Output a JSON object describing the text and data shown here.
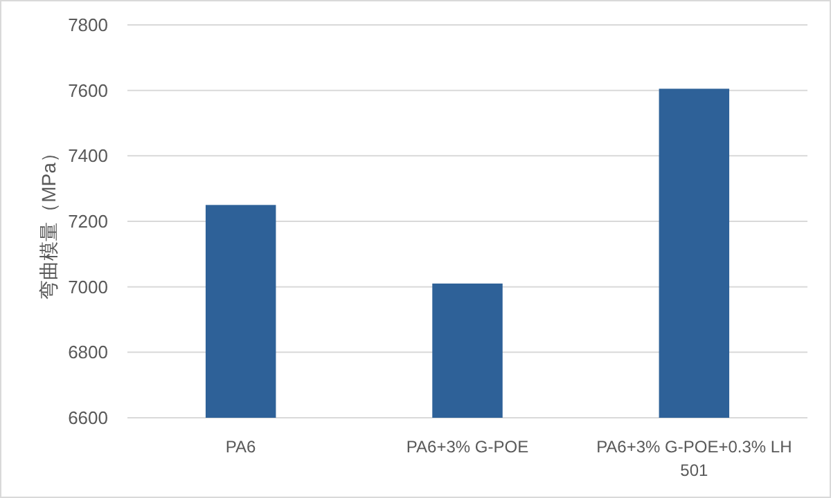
{
  "chart_data": {
    "type": "bar",
    "ylabel": "弯曲模量（MPa）",
    "categories": [
      "PA6",
      "PA6+3% G-POE",
      "PA6+3% G-POE+0.3% LH 501"
    ],
    "values": [
      7250,
      7010,
      7605
    ],
    "color": "#2e6198",
    "ylim": [
      6600,
      7800
    ],
    "yticks": [
      6600,
      6800,
      7000,
      7200,
      7400,
      7600,
      7800
    ],
    "grid": "y"
  }
}
